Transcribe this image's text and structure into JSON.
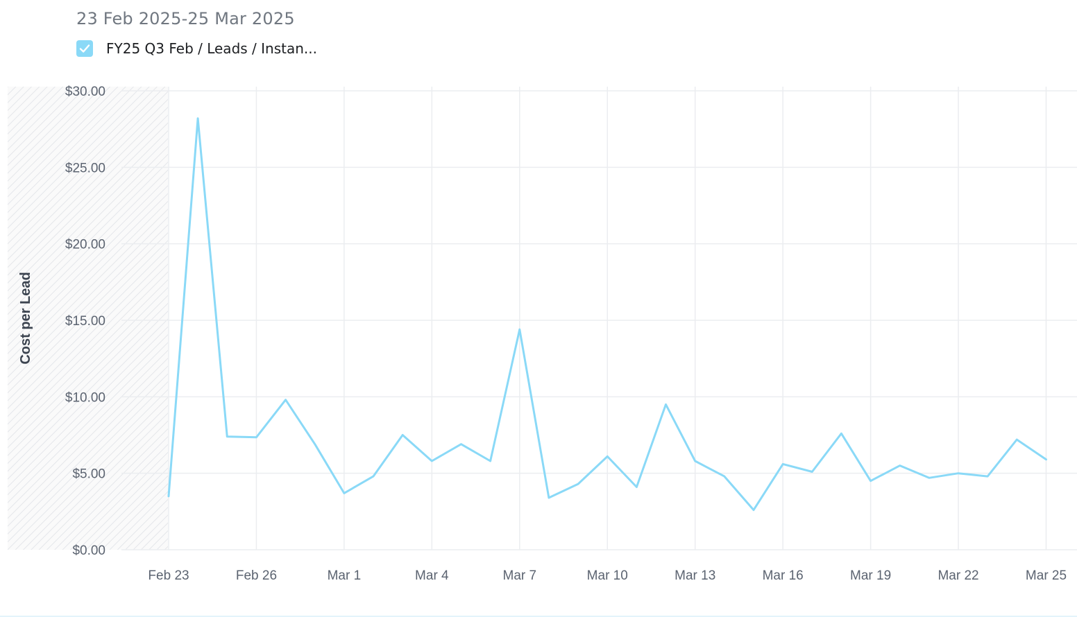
{
  "header": {
    "date_range": "23 Feb 2025-25 Mar 2025",
    "legend_label": "FY25 Q3 Feb / Leads / Instan...",
    "legend_checked": true
  },
  "colors": {
    "series": "#8ad9f7",
    "grid": "#ebedf0",
    "hatch": "#e4e6ea"
  },
  "chart_data": {
    "type": "line",
    "ylabel": "Cost per Lead",
    "ylim": [
      0,
      30
    ],
    "y_ticks": [
      "$0.00",
      "$5.00",
      "$10.00",
      "$15.00",
      "$20.00",
      "$25.00",
      "$30.00"
    ],
    "x_ticks": [
      "Feb 23",
      "Feb 26",
      "Mar 1",
      "Mar 4",
      "Mar 7",
      "Mar 10",
      "Mar 13",
      "Mar 16",
      "Mar 19",
      "Mar 22",
      "Mar 25"
    ],
    "grid": true,
    "legend_position": "top-left",
    "series": [
      {
        "name": "FY25 Q3 Feb / Leads / Instan...",
        "x": [
          "Feb 23",
          "Feb 24",
          "Feb 25",
          "Feb 26",
          "Feb 27",
          "Feb 28",
          "Mar 1",
          "Mar 2",
          "Mar 3",
          "Mar 4",
          "Mar 5",
          "Mar 6",
          "Mar 7",
          "Mar 8",
          "Mar 9",
          "Mar 10",
          "Mar 11",
          "Mar 12",
          "Mar 13",
          "Mar 14",
          "Mar 15",
          "Mar 16",
          "Mar 17",
          "Mar 18",
          "Mar 19",
          "Mar 20",
          "Mar 21",
          "Mar 22",
          "Mar 23",
          "Mar 24",
          "Mar 25"
        ],
        "values": [
          3.5,
          28.2,
          7.4,
          7.35,
          9.8,
          6.9,
          3.7,
          4.8,
          7.5,
          5.8,
          6.9,
          5.8,
          14.4,
          3.4,
          4.3,
          6.1,
          4.1,
          9.5,
          5.8,
          4.8,
          2.6,
          5.6,
          5.1,
          7.6,
          4.5,
          5.5,
          4.7,
          5.0,
          4.8,
          7.2,
          5.9
        ]
      }
    ]
  }
}
